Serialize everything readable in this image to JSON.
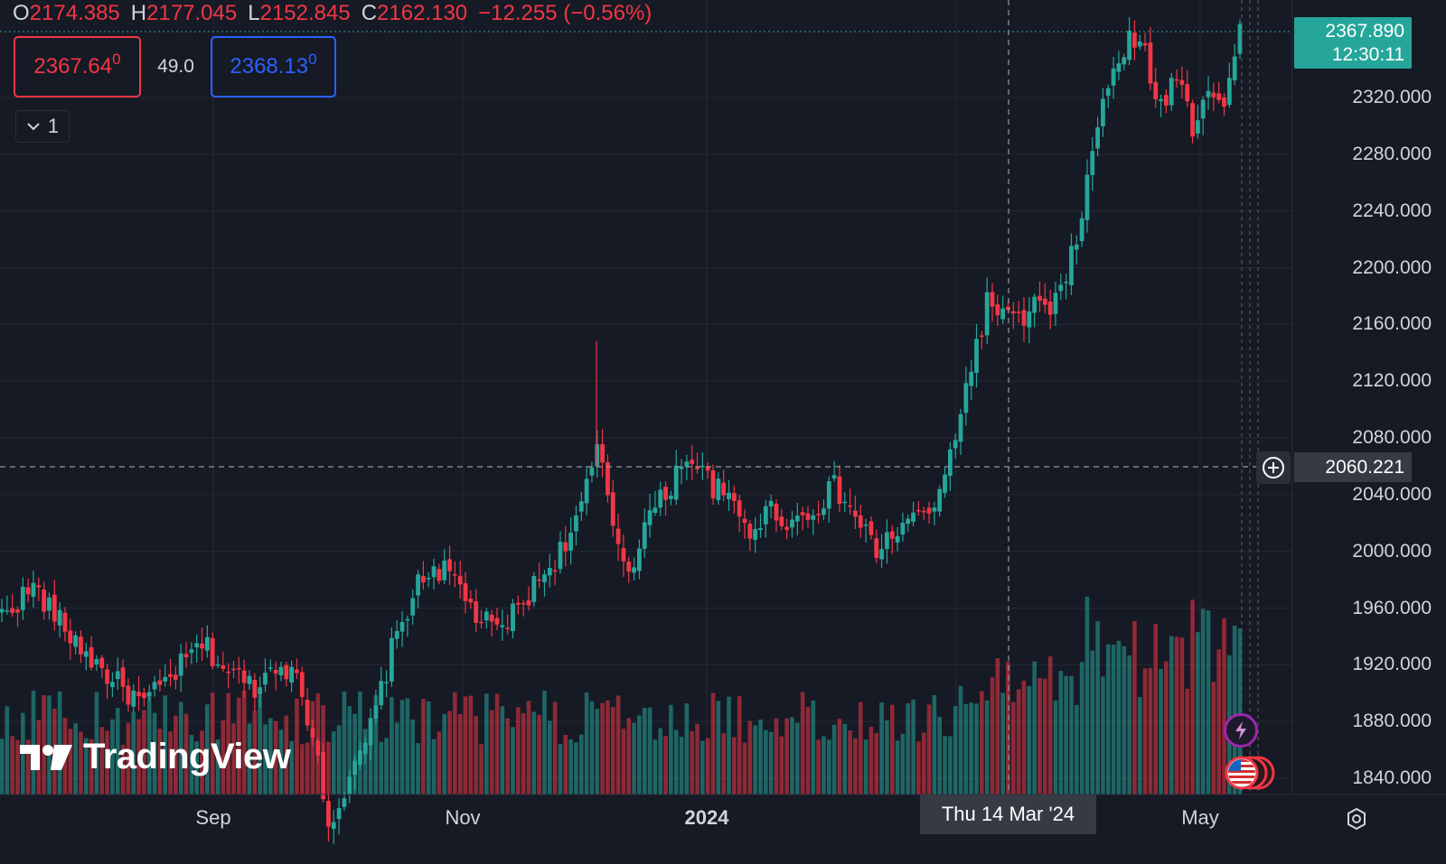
{
  "legend": {
    "open_key": "O",
    "open": "2174.385",
    "high_key": "H",
    "high": "2177.045",
    "low_key": "L",
    "low": "2152.845",
    "close_key": "C",
    "close": "2162.130",
    "change": "−12.255 (−0.56%)"
  },
  "trade_panel": {
    "sell_price_main": "2367.64",
    "sell_price_sup": "0",
    "spread": "49.0",
    "buy_price_main": "2368.13",
    "buy_price_sup": "0"
  },
  "indicator_toggle": {
    "count": "1"
  },
  "price_axis": {
    "labels": [
      "2320.000",
      "2280.000",
      "2240.000",
      "2200.000",
      "2160.000",
      "2120.000",
      "2080.000",
      "2040.000",
      "2000.000",
      "1960.000",
      "1920.000",
      "1880.000",
      "1840.000"
    ],
    "last_price": "2367.890",
    "countdown": "12:30:11",
    "crosshair_price": "2060.221"
  },
  "time_axis": {
    "labels": [
      "Sep",
      "Nov",
      "2024",
      "May"
    ],
    "crosshair_date": "Thu 14 Mar '24"
  },
  "watermark": "TradingView",
  "colors": {
    "background": "#161a25",
    "up": "#26a69a",
    "down": "#f23645",
    "grid": "#242832",
    "text": "#d1d4dc"
  },
  "icons": {
    "settings": "gear-icon",
    "collapse": "chevron-down-icon",
    "crosshair_add": "plus-circle-icon",
    "event_flash": "lightning-icon",
    "event_flag": "us-flag-icon"
  },
  "chart_data": {
    "type": "candlestick",
    "symbol_ohlc_shown": {
      "open": 2174.385,
      "high": 2177.045,
      "low": 2152.845,
      "close": 2162.13
    },
    "ylim": [
      1820,
      2390
    ],
    "x_labels": [
      "Sep",
      "Nov",
      "2024",
      "May"
    ],
    "y_ticks": [
      1840,
      1880,
      1920,
      1960,
      2000,
      2040,
      2080,
      2120,
      2160,
      2200,
      2240,
      2280,
      2320
    ],
    "last_price": 2367.89,
    "crosshair": {
      "price": 2060.221,
      "date": "Thu 14 Mar '24"
    },
    "trend_path": [
      [
        0,
        1955
      ],
      [
        6,
        1975
      ],
      [
        12,
        1945
      ],
      [
        18,
        1920
      ],
      [
        24,
        1900
      ],
      [
        27,
        1892
      ],
      [
        33,
        1915
      ],
      [
        38,
        1935
      ],
      [
        43,
        1915
      ],
      [
        48,
        1905
      ],
      [
        53,
        1925
      ],
      [
        57,
        1900
      ],
      [
        60,
        1855
      ],
      [
        62,
        1810
      ],
      [
        66,
        1835
      ],
      [
        70,
        1875
      ],
      [
        74,
        1930
      ],
      [
        78,
        1970
      ],
      [
        82,
        1990
      ],
      [
        86,
        1980
      ],
      [
        90,
        1955
      ],
      [
        94,
        1942
      ],
      [
        98,
        1960
      ],
      [
        102,
        1980
      ],
      [
        106,
        2000
      ],
      [
        110,
        2030
      ],
      [
        113,
        2072
      ],
      [
        116,
        2020
      ],
      [
        119,
        1985
      ],
      [
        122,
        2020
      ],
      [
        126,
        2040
      ],
      [
        130,
        2070
      ],
      [
        134,
        2050
      ],
      [
        138,
        2035
      ],
      [
        142,
        2015
      ],
      [
        146,
        2030
      ],
      [
        150,
        2020
      ],
      [
        154,
        2030
      ],
      [
        158,
        2045
      ],
      [
        162,
        2025
      ],
      [
        166,
        2000
      ],
      [
        170,
        2015
      ],
      [
        174,
        2025
      ],
      [
        178,
        2035
      ],
      [
        181,
        2085
      ],
      [
        184,
        2130
      ],
      [
        187,
        2175
      ],
      [
        190,
        2168
      ],
      [
        193,
        2160
      ],
      [
        196,
        2175
      ],
      [
        199,
        2168
      ],
      [
        202,
        2190
      ],
      [
        205,
        2240
      ],
      [
        208,
        2300
      ],
      [
        211,
        2340
      ],
      [
        214,
        2360
      ],
      [
        217,
        2350
      ],
      [
        220,
        2310
      ],
      [
        223,
        2340
      ],
      [
        226,
        2300
      ],
      [
        229,
        2330
      ],
      [
        232,
        2315
      ],
      [
        235,
        2368
      ]
    ],
    "volume_range": [
      0,
      100
    ]
  }
}
